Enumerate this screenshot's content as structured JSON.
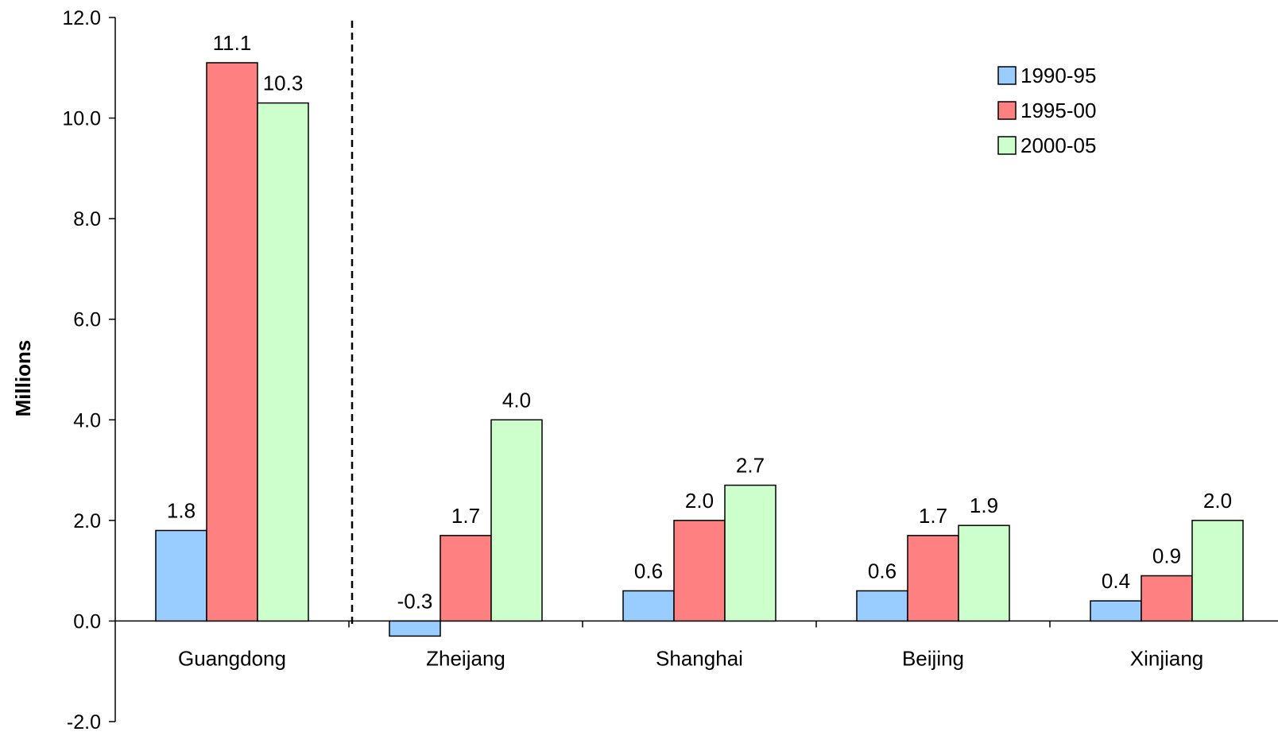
{
  "chart_data": {
    "type": "bar",
    "ylabel": "Millions",
    "ylim": [
      -2.0,
      12.0
    ],
    "yticks": [
      "12.0",
      "10.0",
      "8.0",
      "6.0",
      "4.0",
      "2.0",
      "0.0",
      "-2.0"
    ],
    "categories": [
      "Guangdong",
      "Zheijang",
      "Shanghai",
      "Beijing",
      "Xinjiang"
    ],
    "series": [
      {
        "name": "1990-95",
        "color": "#99ccff",
        "values": [
          1.8,
          -0.3,
          0.6,
          0.6,
          0.4
        ],
        "labels": [
          "1.8",
          "-0.3",
          "0.6",
          "0.6",
          "0.4"
        ]
      },
      {
        "name": "1995-00",
        "color": "#ff8080",
        "values": [
          11.1,
          1.7,
          2.0,
          1.7,
          0.9
        ],
        "labels": [
          "11.1",
          "1.7",
          "2.0",
          "1.7",
          "0.9"
        ]
      },
      {
        "name": "2000-05",
        "color": "#ccffcc",
        "values": [
          10.3,
          4.0,
          2.7,
          1.9,
          2.0
        ],
        "labels": [
          "10.3",
          "4.0",
          "2.7",
          "1.9",
          "2.0"
        ]
      }
    ],
    "grid": false,
    "legend_position": "top-right",
    "separator": "dashed vertical line after Guangdong"
  }
}
